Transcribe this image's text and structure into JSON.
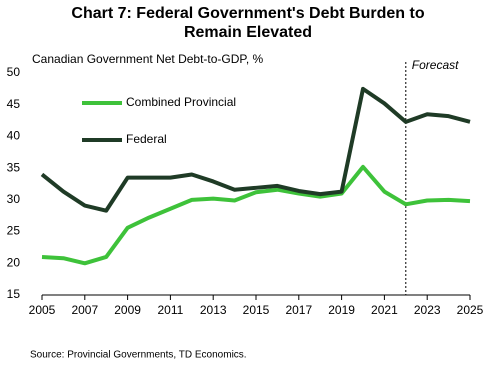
{
  "chart_data": {
    "type": "line",
    "title": "Chart 7: Federal Government's Debt Burden to Remain Elevated",
    "y_label": "Canadian Government Net Debt-to-GDP, %",
    "source": "Source: Provincial Governments, TD Economics.",
    "annotation": "Forecast",
    "forecast_x": 2022,
    "x": [
      2005,
      2006,
      2007,
      2008,
      2009,
      2010,
      2011,
      2012,
      2013,
      2014,
      2015,
      2016,
      2017,
      2018,
      2019,
      2020,
      2021,
      2022,
      2023,
      2024,
      2025
    ],
    "series": [
      {
        "name": "Combined Provincial",
        "color": "#3ec23a",
        "values": [
          21.0,
          20.8,
          20.0,
          21.0,
          25.6,
          27.2,
          28.6,
          30.0,
          30.2,
          29.9,
          31.2,
          31.6,
          31.0,
          30.5,
          31.0,
          35.2,
          31.3,
          29.3,
          29.9,
          30.0,
          29.8
        ]
      },
      {
        "name": "Federal",
        "color": "#1f3b26",
        "values": [
          34.0,
          31.3,
          29.1,
          28.3,
          33.5,
          33.5,
          33.5,
          34.0,
          32.9,
          31.6,
          31.9,
          32.2,
          31.4,
          30.9,
          31.3,
          47.5,
          45.2,
          42.3,
          43.5,
          43.2,
          42.3
        ]
      }
    ],
    "xlim": [
      2005,
      2025
    ],
    "xticks": [
      2005,
      2007,
      2009,
      2011,
      2013,
      2015,
      2017,
      2019,
      2021,
      2023,
      2025
    ],
    "ylim": [
      15,
      50
    ],
    "yticks": [
      15,
      20,
      25,
      30,
      35,
      40,
      45,
      50
    ],
    "grid": false
  }
}
